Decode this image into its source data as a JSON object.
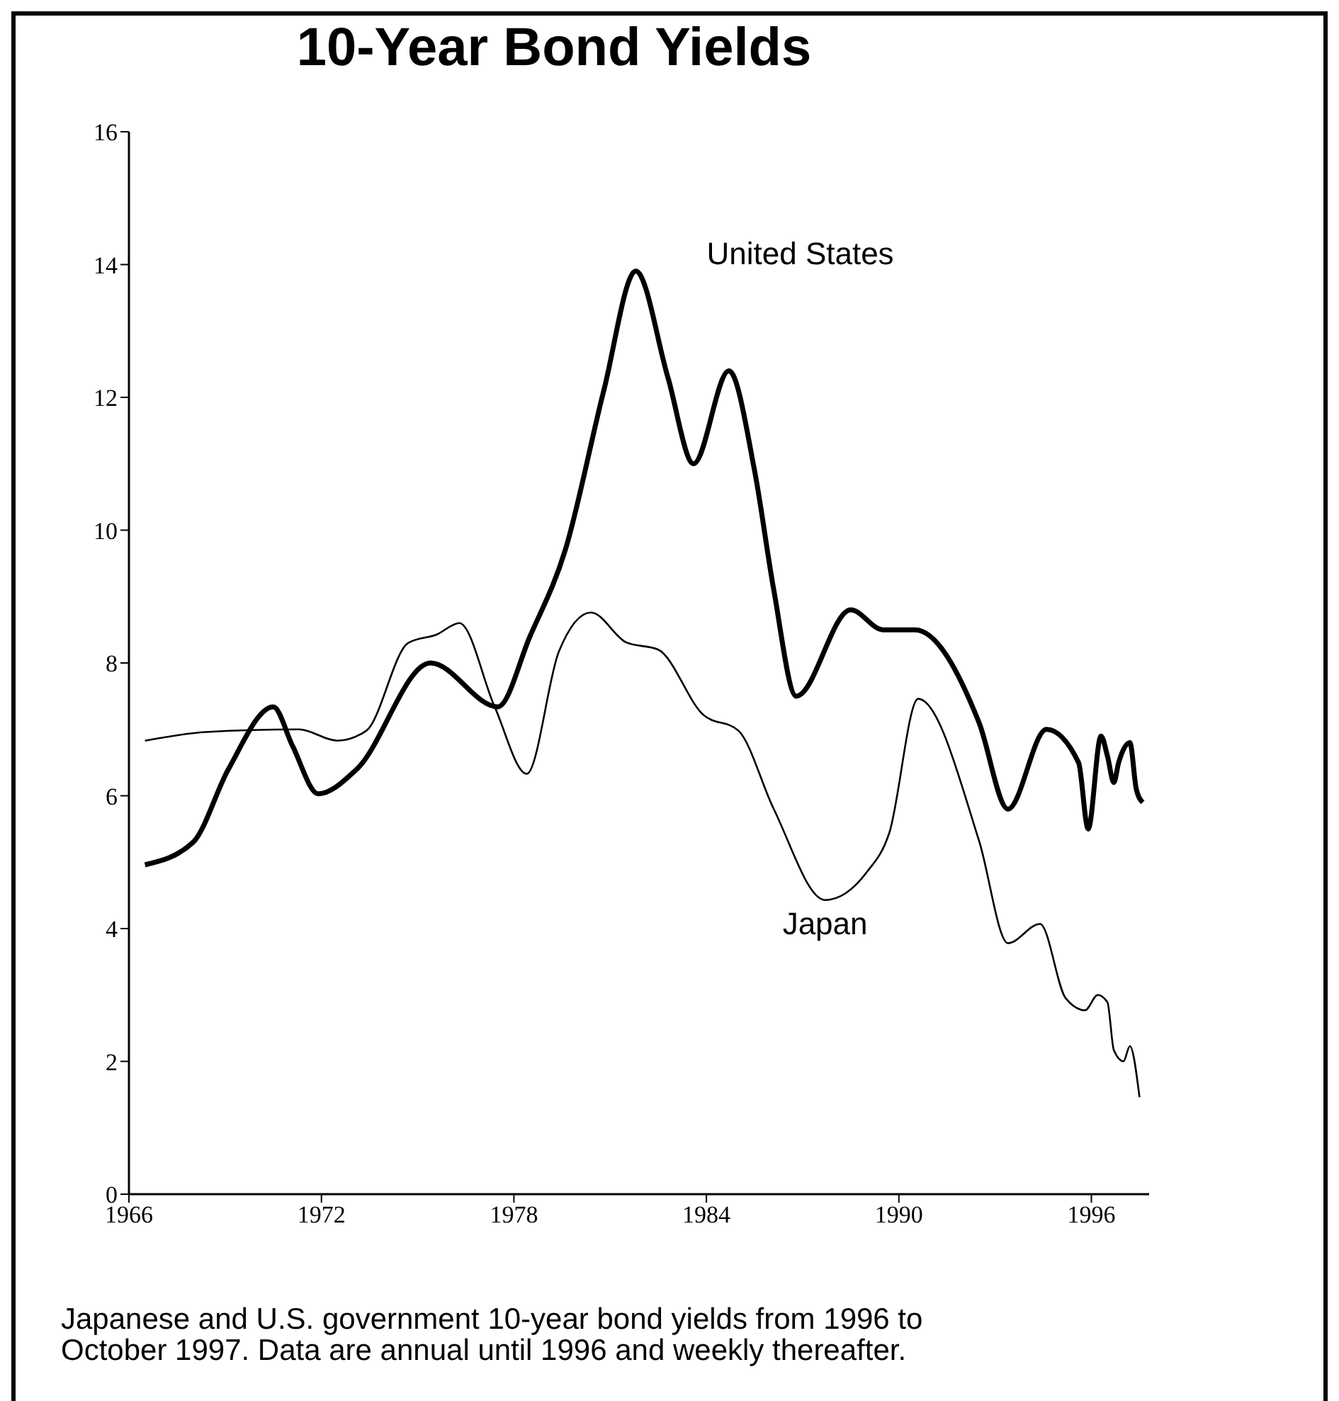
{
  "chart_data": {
    "type": "line",
    "title": "10-Year Bond Yields",
    "series": [
      {
        "name": "United States",
        "color": "#000000",
        "x": [
          1966.5,
          1968.0,
          1969.1,
          1970.5,
          1971.1,
          1971.9,
          1973.1,
          1975.4,
          1977.5,
          1978.5,
          1979.6,
          1980.8,
          1981.8,
          1982.8,
          1983.6,
          1984.7,
          1985.5,
          1986.1,
          1986.8,
          1988.5,
          1989.5,
          1990.5,
          1992.5,
          1993.4,
          1994.6,
          1995.6,
          1995.9,
          1996.3,
          1996.5,
          1996.7,
          1996.85,
          1997.2,
          1997.4,
          1997.6
        ],
        "values": [
          4.96,
          5.3,
          6.4,
          7.34,
          6.75,
          6.03,
          6.4,
          8.0,
          7.34,
          8.4,
          9.7,
          12.1,
          13.9,
          12.3,
          11.0,
          12.4,
          10.9,
          9.1,
          7.5,
          8.8,
          8.5,
          8.5,
          7.1,
          5.8,
          7.0,
          6.5,
          5.5,
          6.9,
          6.6,
          6.2,
          6.5,
          6.8,
          6.1,
          5.9
        ]
      },
      {
        "name": "Japan",
        "color": "#000000",
        "x": [
          1966.5,
          1968.4,
          1971.3,
          1972.5,
          1973.4,
          1974.7,
          1975.6,
          1976.3,
          1977.4,
          1978.4,
          1979.4,
          1980.4,
          1981.5,
          1982.5,
          1983.9,
          1985.0,
          1986.1,
          1987.7,
          1989.0,
          1989.7,
          1990.6,
          1992.5,
          1993.4,
          1994.4,
          1995.2,
          1995.8,
          1996.2,
          1996.5,
          1996.7,
          1997.0,
          1997.2,
          1997.5
        ],
        "values": [
          6.83,
          6.96,
          7.0,
          6.83,
          6.98,
          8.3,
          8.43,
          8.6,
          7.34,
          6.33,
          8.17,
          8.76,
          8.31,
          8.2,
          7.22,
          6.98,
          5.8,
          4.43,
          4.85,
          5.44,
          7.46,
          5.32,
          3.78,
          4.07,
          2.95,
          2.77,
          3.0,
          2.89,
          2.17,
          2.0,
          2.23,
          1.46
        ]
      }
    ],
    "annotations": [
      "Japanese and U.S. government 10-year bond yields from 1996 to October 1997.  Data are annual until 1996 and weekly thereafter."
    ],
    "xlim": [
      1966,
      1997.8
    ],
    "xticks": [
      1966,
      1972,
      1978,
      1984,
      1990,
      1996
    ],
    "ylim": [
      0,
      16
    ],
    "yticks": [
      0,
      2,
      4,
      6,
      8,
      10,
      12,
      14,
      16
    ],
    "grid": false
  }
}
